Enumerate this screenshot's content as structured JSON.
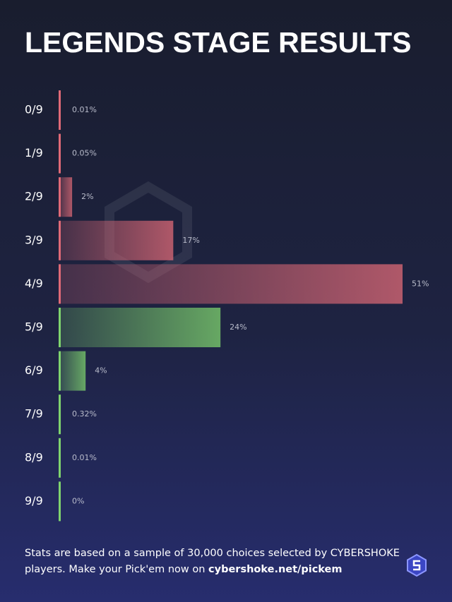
{
  "chart_data": {
    "type": "hbar",
    "title": "LEGENDS STAGE RESULTS",
    "categories": [
      "0/9",
      "1/9",
      "2/9",
      "3/9",
      "4/9",
      "5/9",
      "6/9",
      "7/9",
      "8/9",
      "9/9"
    ],
    "values": [
      0.01,
      0.05,
      2,
      17,
      51,
      24,
      4,
      0.32,
      0.01,
      0
    ],
    "value_labels": [
      "0.01%",
      "0.05%",
      "2%",
      "17%",
      "51%",
      "24%",
      "4%",
      "0.32%",
      "0.01%",
      "0%"
    ],
    "colors": [
      "#e06a77",
      "#e06a77",
      "#e06a77",
      "#e06a77",
      "#e06a77",
      "#7fd46e",
      "#7fd46e",
      "#7fd46e",
      "#7fd46e",
      "#7fd46e"
    ]
  },
  "footer": {
    "note": "Stats are based on a sample of 30,000 choices selected by CYBERSHOKE",
    "note_line2": "players. Make your Pick'em now on",
    "link": "cybershoke.net/pickem"
  }
}
